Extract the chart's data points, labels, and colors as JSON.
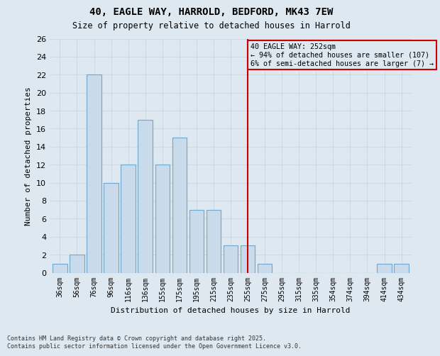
{
  "title_line1": "40, EAGLE WAY, HARROLD, BEDFORD, MK43 7EW",
  "title_line2": "Size of property relative to detached houses in Harrold",
  "xlabel": "Distribution of detached houses by size in Harrold",
  "ylabel": "Number of detached properties",
  "categories": [
    "36sqm",
    "56sqm",
    "76sqm",
    "96sqm",
    "116sqm",
    "136sqm",
    "155sqm",
    "175sqm",
    "195sqm",
    "215sqm",
    "235sqm",
    "255sqm",
    "275sqm",
    "295sqm",
    "315sqm",
    "335sqm",
    "354sqm",
    "374sqm",
    "394sqm",
    "414sqm",
    "434sqm"
  ],
  "values": [
    1,
    2,
    22,
    10,
    12,
    17,
    12,
    15,
    7,
    7,
    3,
    3,
    1,
    0,
    0,
    0,
    0,
    0,
    0,
    1,
    1
  ],
  "bar_color": "#c9daea",
  "bar_edge_color": "#6ea8d0",
  "vline_index": 11,
  "vline_color": "#cc0000",
  "annotation_text": "40 EAGLE WAY: 252sqm\n← 94% of detached houses are smaller (107)\n6% of semi-detached houses are larger (7) →",
  "annotation_box_color": "#cc0000",
  "ylim": [
    0,
    26
  ],
  "yticks": [
    0,
    2,
    4,
    6,
    8,
    10,
    12,
    14,
    16,
    18,
    20,
    22,
    24,
    26
  ],
  "grid_color": "#d0d8e8",
  "background_color": "#dde8f0",
  "footer_line1": "Contains HM Land Registry data © Crown copyright and database right 2025.",
  "footer_line2": "Contains public sector information licensed under the Open Government Licence v3.0."
}
